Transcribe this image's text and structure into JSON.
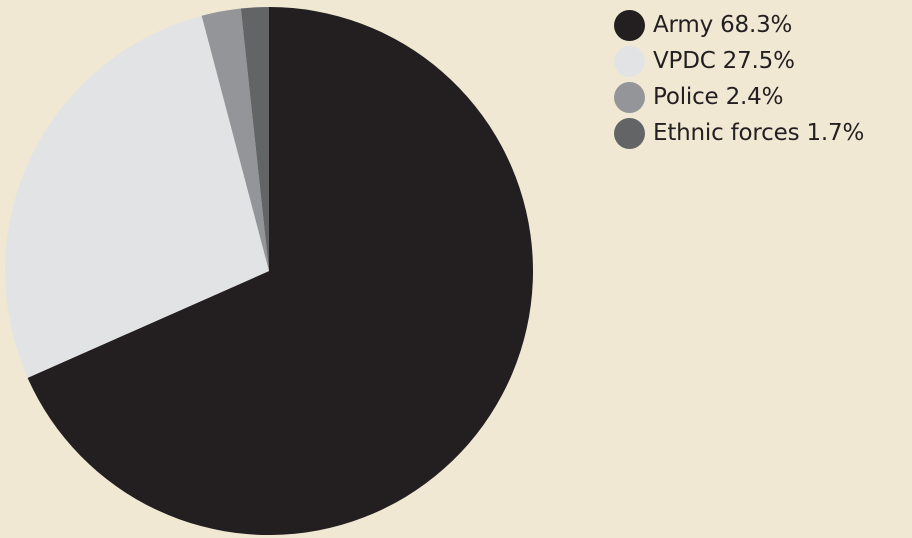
{
  "chart_data": {
    "type": "pie",
    "title": "",
    "legend_position": "top-right",
    "slices": [
      {
        "label": "Army",
        "value": 68.3,
        "display": "Army 68.3%",
        "color": "#231f20"
      },
      {
        "label": "VPDC",
        "value": 27.5,
        "display": "VPDC 27.5%",
        "color": "#e2e3e4"
      },
      {
        "label": "Police",
        "value": 2.4,
        "display": "Police 2.4%",
        "color": "#939598"
      },
      {
        "label": "Ethnic forces",
        "value": 1.7,
        "display": "Ethnic forces 1.7%",
        "color": "#636466"
      }
    ]
  }
}
